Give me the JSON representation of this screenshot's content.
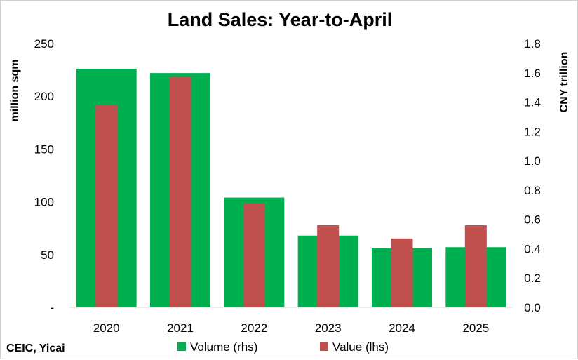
{
  "chart_data": {
    "type": "bar",
    "title": "Land Sales: Year-to-April",
    "categories": [
      "2020",
      "2021",
      "2022",
      "2023",
      "2024",
      "2025"
    ],
    "series": [
      {
        "name": "Volume (rhs)",
        "axis": "left",
        "color": "#00b050",
        "values": [
          226,
          222,
          104,
          68,
          56,
          57
        ]
      },
      {
        "name": "Value (lhs)",
        "axis": "right",
        "color": "#c0504d",
        "values": [
          1.38,
          1.57,
          0.71,
          0.56,
          0.47,
          0.56
        ]
      }
    ],
    "ylabel_left": "million sqm",
    "ylabel_right": "CNY trillion",
    "ylim_left": [
      0,
      250
    ],
    "ylim_right": [
      0,
      1.8
    ],
    "left_ticks": [
      "-",
      "50",
      "100",
      "150",
      "200",
      "250"
    ],
    "right_ticks": [
      "0.0",
      "0.2",
      "0.4",
      "0.6",
      "0.8",
      "1.0",
      "1.2",
      "1.4",
      "1.6",
      "1.8"
    ],
    "grid": false,
    "legend_position": "bottom",
    "source": "CEIC, Yicai"
  }
}
